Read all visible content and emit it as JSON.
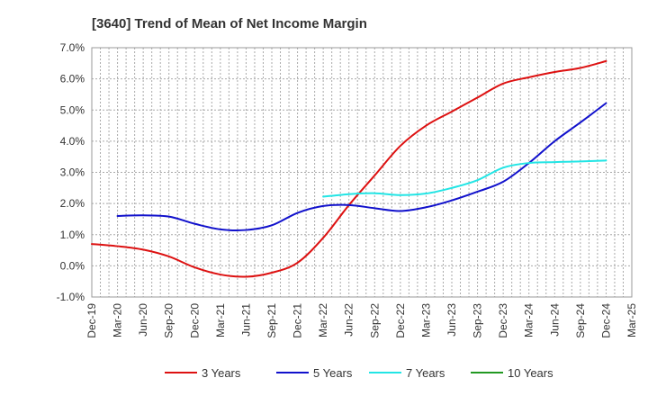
{
  "chart_data": {
    "type": "line",
    "title": "[3640]  Trend of Mean of Net Income Margin",
    "xlabel": "",
    "ylabel": "",
    "ylim": [
      -1.0,
      7.0
    ],
    "y_ticks": [
      "-1.0%",
      "0.0%",
      "1.0%",
      "2.0%",
      "3.0%",
      "4.0%",
      "5.0%",
      "6.0%",
      "7.0%"
    ],
    "x_ticks": [
      "Dec-19",
      "Mar-20",
      "Jun-20",
      "Sep-20",
      "Dec-20",
      "Mar-21",
      "Jun-21",
      "Sep-21",
      "Dec-21",
      "Mar-22",
      "Jun-22",
      "Sep-22",
      "Dec-22",
      "Mar-23",
      "Jun-23",
      "Sep-23",
      "Dec-23",
      "Mar-24",
      "Jun-24",
      "Sep-24",
      "Dec-24",
      "Mar-25"
    ],
    "grid": true,
    "legend_position": "bottom",
    "series": [
      {
        "name": "3 Years",
        "color": "#dd1111",
        "values": [
          0.7,
          0.63,
          0.52,
          0.3,
          -0.05,
          -0.28,
          -0.35,
          -0.22,
          0.1,
          0.9,
          1.95,
          2.9,
          3.85,
          4.5,
          4.95,
          5.4,
          5.85,
          6.05,
          6.22,
          6.35,
          6.57,
          null
        ]
      },
      {
        "name": "5 Years",
        "color": "#1111cc",
        "values": [
          null,
          1.6,
          1.62,
          1.58,
          1.35,
          1.17,
          1.15,
          1.3,
          1.7,
          1.92,
          1.95,
          1.85,
          1.76,
          1.88,
          2.1,
          2.38,
          2.7,
          3.3,
          4.0,
          4.6,
          5.22,
          null
        ]
      },
      {
        "name": "7 Years",
        "color": "#22e5e5",
        "values": [
          null,
          null,
          null,
          null,
          null,
          null,
          null,
          null,
          null,
          2.22,
          2.3,
          2.33,
          2.27,
          2.32,
          2.5,
          2.75,
          3.15,
          3.3,
          3.33,
          3.35,
          3.38,
          null
        ]
      },
      {
        "name": "10 Years",
        "color": "#229922",
        "values": [
          null,
          null,
          null,
          null,
          null,
          null,
          null,
          null,
          null,
          null,
          null,
          null,
          null,
          null,
          null,
          null,
          null,
          null,
          null,
          null,
          null,
          null
        ]
      }
    ]
  }
}
